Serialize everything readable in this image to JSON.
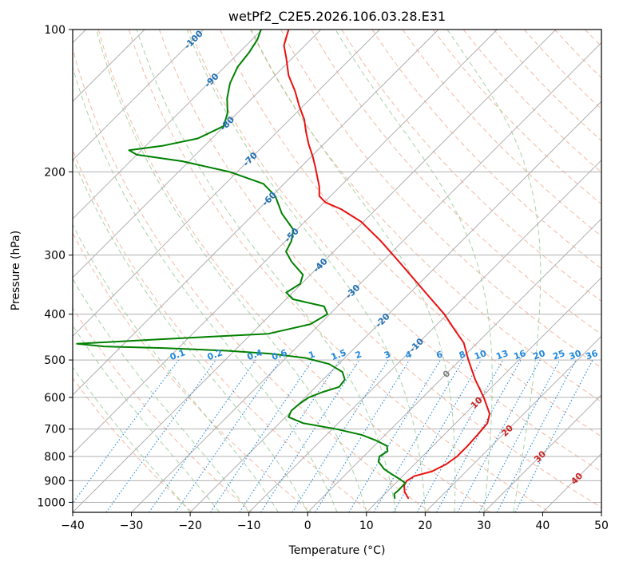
{
  "chart_data": {
    "type": "line",
    "chart_kind": "skew-T log-p diagram",
    "title": "wetPf2_C2E5.2026.106.03.28.E31",
    "xlabel": "Temperature (°C)",
    "ylabel": "Pressure (hPa)",
    "xlim": [
      -40,
      50
    ],
    "ylim_hpa": [
      1050,
      100
    ],
    "y_scale": "log",
    "grid": true,
    "x_ticks": [
      "−40",
      "−30",
      "−20",
      "−10",
      "0",
      "10",
      "20",
      "30",
      "40",
      "50"
    ],
    "x_tick_values": [
      -40,
      -30,
      -20,
      -10,
      0,
      10,
      20,
      30,
      40,
      50
    ],
    "y_ticks": [
      "100",
      "200",
      "300",
      "400",
      "500",
      "600",
      "700",
      "800",
      "900",
      "1000"
    ],
    "y_tick_values": [
      100,
      200,
      300,
      400,
      500,
      600,
      700,
      800,
      900,
      1000
    ],
    "colors": {
      "temperature": "#e8110f",
      "dewpoint": "#008000",
      "dry_adiabat": "#f0a080",
      "moist_adiabat": "#90c890",
      "mixing_ratio": "#2288dd",
      "isotherm_label": "#1f6fb4",
      "isotherm_label_warm": "#cc2222",
      "isotherm_label_zero": "#808080",
      "grid": "#b0b0b0"
    },
    "isotherm_labels": [
      {
        "t": -100,
        "p": 105,
        "text": "-100"
      },
      {
        "t": -90,
        "p": 128,
        "text": "-90"
      },
      {
        "t": -80,
        "p": 158,
        "text": "-80"
      },
      {
        "t": -70,
        "p": 188,
        "text": "-70"
      },
      {
        "t": -60,
        "p": 228,
        "text": "-60"
      },
      {
        "t": -50,
        "p": 272,
        "text": "-50"
      },
      {
        "t": -40,
        "p": 315,
        "text": "-40"
      },
      {
        "t": -30,
        "p": 358,
        "text": "-30"
      },
      {
        "t": -20,
        "p": 412,
        "text": "-20"
      },
      {
        "t": -10,
        "p": 465,
        "text": "-10"
      },
      {
        "t": 0,
        "p": 535,
        "text": "0"
      },
      {
        "t": 10,
        "p": 615,
        "text": "10"
      },
      {
        "t": 20,
        "p": 705,
        "text": "20"
      },
      {
        "t": 30,
        "p": 800,
        "text": "30"
      },
      {
        "t": 40,
        "p": 890,
        "text": "40"
      }
    ],
    "mixing_ratio_labels": [
      "0.1",
      "0.2",
      "0.4",
      "0.6",
      "1",
      "1.5",
      "2",
      "3",
      "4",
      "6",
      "8",
      "10",
      "13",
      "16",
      "20",
      "25",
      "30",
      "36"
    ],
    "mixing_ratio_values": [
      0.1,
      0.2,
      0.4,
      0.6,
      1,
      1.5,
      2,
      3,
      4,
      6,
      8,
      10,
      13,
      16,
      20,
      25,
      30,
      36
    ],
    "series": [
      {
        "key": "temperature",
        "x_label": "T (°C)",
        "points": [
          [
            980,
            14.7
          ],
          [
            950,
            13.0
          ],
          [
            920,
            11.8
          ],
          [
            900,
            11.5
          ],
          [
            880,
            12.0
          ],
          [
            860,
            14.2
          ],
          [
            830,
            15.4
          ],
          [
            800,
            15.9
          ],
          [
            760,
            15.9
          ],
          [
            720,
            15.7
          ],
          [
            680,
            15.4
          ],
          [
            650,
            14.2
          ],
          [
            600,
            10.4
          ],
          [
            550,
            5.9
          ],
          [
            500,
            1.4
          ],
          [
            460,
            -2.3
          ],
          [
            430,
            -6.3
          ],
          [
            400,
            -10.5
          ],
          [
            370,
            -15.6
          ],
          [
            340,
            -21.1
          ],
          [
            310,
            -27.1
          ],
          [
            280,
            -33.8
          ],
          [
            255,
            -40.4
          ],
          [
            240,
            -45.9
          ],
          [
            232,
            -49.8
          ],
          [
            225,
            -51.9
          ],
          [
            215,
            -53.5
          ],
          [
            205,
            -55.5
          ],
          [
            195,
            -57.6
          ],
          [
            185,
            -59.9
          ],
          [
            175,
            -62.5
          ],
          [
            165,
            -65.0
          ],
          [
            155,
            -67.5
          ],
          [
            145,
            -70.7
          ],
          [
            135,
            -73.9
          ],
          [
            125,
            -77.7
          ],
          [
            115,
            -81.0
          ],
          [
            108,
            -83.6
          ],
          [
            100,
            -85.5
          ]
        ]
      },
      {
        "key": "dewpoint",
        "x_label": "Td (°C)",
        "points": [
          [
            980,
            12.4
          ],
          [
            960,
            11.6
          ],
          [
            940,
            11.7
          ],
          [
            910,
            11.6
          ],
          [
            890,
            9.7
          ],
          [
            870,
            7.6
          ],
          [
            850,
            5.6
          ],
          [
            820,
            3.4
          ],
          [
            800,
            2.7
          ],
          [
            780,
            3.2
          ],
          [
            760,
            2.2
          ],
          [
            740,
            -0.6
          ],
          [
            720,
            -4.0
          ],
          [
            700,
            -9.3
          ],
          [
            680,
            -16.0
          ],
          [
            660,
            -19.5
          ],
          [
            640,
            -20.1
          ],
          [
            620,
            -19.9
          ],
          [
            600,
            -19.4
          ],
          [
            585,
            -18.0
          ],
          [
            570,
            -16.0
          ],
          [
            550,
            -16.3
          ],
          [
            530,
            -18.0
          ],
          [
            510,
            -21.6
          ],
          [
            495,
            -26.7
          ],
          [
            485,
            -33.3
          ],
          [
            478,
            -41.3
          ],
          [
            472,
            -52.1
          ],
          [
            468,
            -63.0
          ],
          [
            462,
            -68.0
          ],
          [
            452,
            -54.5
          ],
          [
            440,
            -37.1
          ],
          [
            420,
            -31.6
          ],
          [
            400,
            -30.4
          ],
          [
            385,
            -32.3
          ],
          [
            372,
            -38.8
          ],
          [
            360,
            -41.1
          ],
          [
            345,
            -40.2
          ],
          [
            330,
            -41.3
          ],
          [
            310,
            -45.4
          ],
          [
            295,
            -48.1
          ],
          [
            280,
            -49.0
          ],
          [
            265,
            -50.6
          ],
          [
            245,
            -55.3
          ],
          [
            225,
            -59.4
          ],
          [
            212,
            -63.5
          ],
          [
            200,
            -71.3
          ],
          [
            190,
            -81.1
          ],
          [
            184,
            -90.0
          ],
          [
            180,
            -92.1
          ],
          [
            176,
            -87.0
          ],
          [
            170,
            -82.4
          ],
          [
            160,
            -80.1
          ],
          [
            150,
            -81.7
          ],
          [
            140,
            -84.2
          ],
          [
            130,
            -86.3
          ],
          [
            120,
            -87.8
          ],
          [
            112,
            -88.3
          ],
          [
            105,
            -89.1
          ],
          [
            100,
            -90.2
          ]
        ]
      }
    ]
  }
}
